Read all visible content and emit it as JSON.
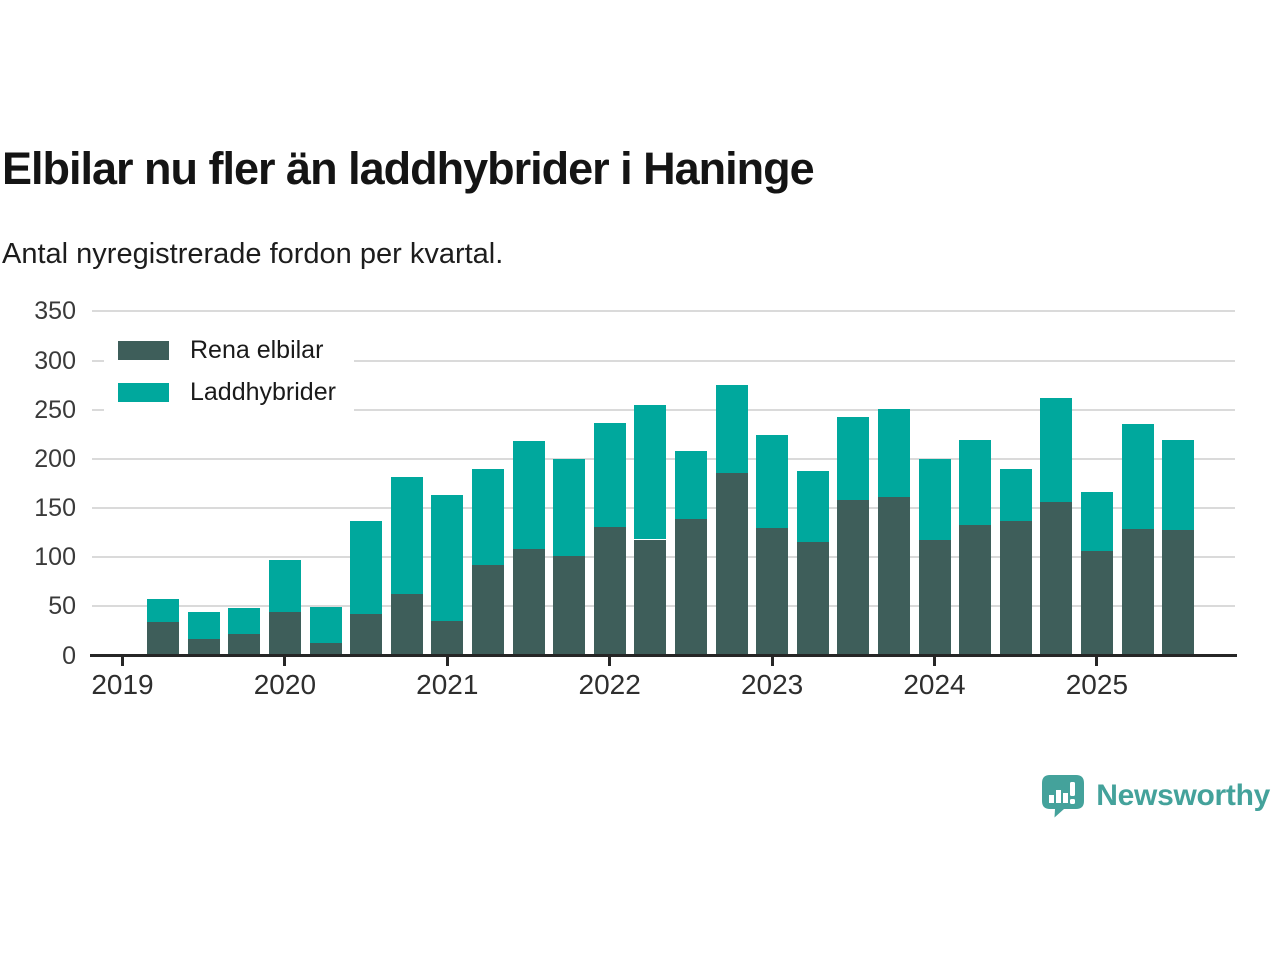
{
  "header": {
    "title": "Elbilar nu fler än laddhybrider i Haninge",
    "subtitle": "Antal nyregistrerade fordon per kvartal."
  },
  "legend": [
    {
      "label": "Rena elbilar",
      "color": "#3e5e5a"
    },
    {
      "label": "Laddhybrider",
      "color": "#00a89d"
    }
  ],
  "footer": {
    "brand": "Newsworthy",
    "brand_color": "#44a29b",
    "logo_icon": "bar-chart-speech-bubble-icon"
  },
  "colors": {
    "background": "#ffffff",
    "title_text": "#141414",
    "axis_text": "#3a3a3a",
    "gridline": "#dadada",
    "axis_line": "#262626",
    "series_dark": "#3e5e5a",
    "series_teal": "#00a89d"
  },
  "chart_data": {
    "type": "bar",
    "stacked": true,
    "title": "Elbilar nu fler än laddhybrider i Haninge",
    "subtitle": "Antal nyregistrerade fordon per kvartal.",
    "xlabel": "",
    "ylabel": "",
    "x": [
      "2019Q2",
      "2019Q3",
      "2019Q4",
      "2020Q1",
      "2020Q2",
      "2020Q3",
      "2020Q4",
      "2021Q1",
      "2021Q2",
      "2021Q3",
      "2021Q4",
      "2022Q1",
      "2022Q2",
      "2022Q3",
      "2022Q4",
      "2023Q1",
      "2023Q2",
      "2023Q3",
      "2023Q4",
      "2024Q1",
      "2024Q2",
      "2024Q3",
      "2024Q4",
      "2025Q1",
      "2025Q2",
      "2025Q3"
    ],
    "series": [
      {
        "name": "Rena elbilar",
        "color": "#3e5e5a",
        "values": [
          34,
          17,
          22,
          44,
          13,
          42,
          63,
          35,
          92,
          108,
          101,
          131,
          118,
          139,
          186,
          130,
          115,
          158,
          161,
          117,
          133,
          137,
          156,
          106,
          129,
          128
        ]
      },
      {
        "name": "Laddhybrider",
        "color": "#00a89d",
        "values": [
          23,
          27,
          26,
          53,
          36,
          95,
          119,
          128,
          98,
          110,
          99,
          106,
          137,
          69,
          89,
          94,
          73,
          85,
          90,
          83,
          86,
          53,
          106,
          60,
          106,
          91
        ]
      }
    ],
    "stack_totals": [
      57,
      44,
      48,
      97,
      49,
      137,
      182,
      163,
      190,
      218,
      200,
      237,
      255,
      208,
      275,
      224,
      188,
      243,
      251,
      200,
      219,
      190,
      262,
      166,
      235,
      219
    ],
    "year_ticks": [
      "2019",
      "2020",
      "2021",
      "2022",
      "2023",
      "2024",
      "2025"
    ],
    "y_ticks": [
      0,
      50,
      100,
      150,
      200,
      250,
      300,
      350
    ],
    "ylim": [
      0,
      350
    ],
    "grid": "horizontal",
    "legend_position": "top-left-inside"
  }
}
